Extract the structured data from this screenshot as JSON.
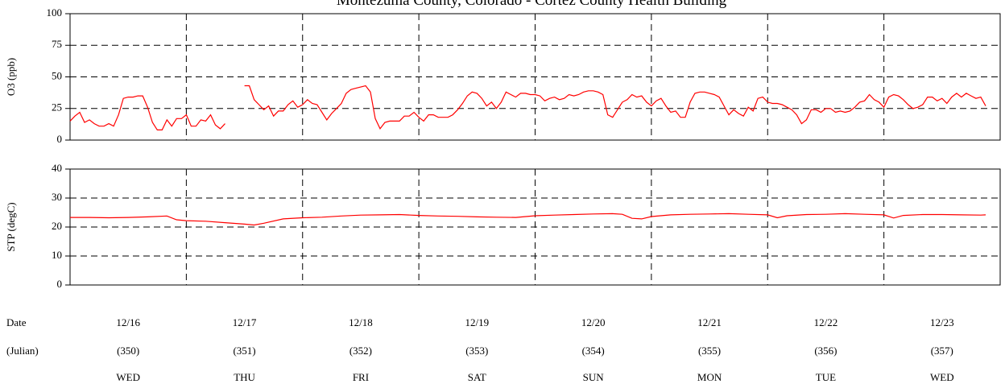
{
  "chart_data": {
    "type": "line",
    "title": "Montezuma County, Colorado - Cortez County Health Building",
    "row_labels": {
      "date": "Date",
      "julian": "(Julian)"
    },
    "days": [
      {
        "date": "12/16",
        "julian": "(350)",
        "dow": "WED"
      },
      {
        "date": "12/17",
        "julian": "(351)",
        "dow": "THU"
      },
      {
        "date": "12/18",
        "julian": "(352)",
        "dow": "FRI"
      },
      {
        "date": "12/19",
        "julian": "(353)",
        "dow": "SAT"
      },
      {
        "date": "12/20",
        "julian": "(354)",
        "dow": "SUN"
      },
      {
        "date": "12/21",
        "julian": "(355)",
        "dow": "MON"
      },
      {
        "date": "12/22",
        "julian": "(356)",
        "dow": "TUE"
      },
      {
        "date": "12/23",
        "julian": "(357)",
        "dow": "WED"
      }
    ],
    "panels": [
      {
        "ylabel": "O3 (ppb)",
        "ylim": [
          0,
          100
        ],
        "yticks": [
          "0",
          "25",
          "50",
          "75",
          "100"
        ],
        "grid": true,
        "color": "#ff0000",
        "series": [
          [
            [
              0.0,
              15
            ],
            [
              0.25,
              19
            ],
            [
              0.5,
              22
            ],
            [
              0.75,
              14
            ],
            [
              1.0,
              16
            ],
            [
              1.25,
              13
            ],
            [
              1.5,
              11
            ],
            [
              1.75,
              11
            ],
            [
              2.0,
              13
            ],
            [
              2.25,
              11
            ],
            [
              2.5,
              20
            ],
            [
              2.75,
              33
            ],
            [
              3.0,
              34
            ],
            [
              3.25,
              34
            ],
            [
              3.5,
              35
            ],
            [
              3.75,
              35
            ],
            [
              4.0,
              26
            ],
            [
              4.25,
              14
            ],
            [
              4.5,
              8
            ],
            [
              4.75,
              8
            ],
            [
              5.0,
              16
            ],
            [
              5.25,
              11
            ],
            [
              5.5,
              17
            ],
            [
              5.75,
              17
            ],
            [
              6.0,
              20
            ],
            [
              6.25,
              11
            ],
            [
              6.5,
              11
            ],
            [
              6.75,
              16
            ],
            [
              7.0,
              15
            ],
            [
              7.25,
              20
            ],
            [
              7.5,
              12
            ],
            [
              7.75,
              9
            ],
            [
              8.0,
              13
            ]
          ],
          [
            [
              9.0,
              43
            ],
            [
              9.25,
              43
            ],
            [
              9.5,
              32
            ],
            [
              9.75,
              28
            ],
            [
              10.0,
              24
            ],
            [
              10.25,
              27
            ],
            [
              10.5,
              19
            ],
            [
              10.75,
              23
            ],
            [
              11.0,
              23
            ],
            [
              11.25,
              28
            ],
            [
              11.5,
              31
            ],
            [
              11.75,
              26
            ],
            [
              12.0,
              28
            ],
            [
              12.25,
              32
            ],
            [
              12.5,
              29
            ],
            [
              12.75,
              28
            ],
            [
              13.0,
              22
            ],
            [
              13.25,
              16
            ],
            [
              13.5,
              21
            ],
            [
              13.75,
              25
            ],
            [
              14.0,
              29
            ],
            [
              14.25,
              37
            ],
            [
              14.5,
              40
            ],
            [
              14.75,
              41
            ],
            [
              15.0,
              42
            ],
            [
              15.25,
              43
            ],
            [
              15.5,
              38
            ],
            [
              15.75,
              17
            ],
            [
              16.0,
              9
            ],
            [
              16.25,
              14
            ],
            [
              16.5,
              15
            ],
            [
              16.75,
              15
            ],
            [
              17.0,
              15
            ],
            [
              17.25,
              19
            ],
            [
              17.5,
              19
            ],
            [
              17.75,
              22
            ],
            [
              18.0,
              18
            ],
            [
              18.25,
              15
            ],
            [
              18.5,
              20
            ],
            [
              18.75,
              20
            ],
            [
              19.0,
              18
            ],
            [
              19.25,
              18
            ],
            [
              19.5,
              18
            ],
            [
              19.75,
              20
            ],
            [
              20.0,
              24
            ],
            [
              20.25,
              29
            ],
            [
              20.5,
              35
            ],
            [
              20.75,
              38
            ],
            [
              21.0,
              37
            ],
            [
              21.25,
              33
            ],
            [
              21.5,
              27
            ],
            [
              21.75,
              30
            ],
            [
              22.0,
              25
            ],
            [
              22.25,
              30
            ],
            [
              22.5,
              38
            ],
            [
              22.75,
              36
            ],
            [
              23.0,
              34
            ],
            [
              23.25,
              37
            ],
            [
              23.5,
              37
            ],
            [
              23.75,
              36
            ],
            [
              24.0,
              36
            ],
            [
              24.25,
              35
            ],
            [
              24.5,
              31
            ],
            [
              24.75,
              33
            ],
            [
              25.0,
              34
            ],
            [
              25.25,
              32
            ],
            [
              25.5,
              33
            ],
            [
              25.75,
              36
            ],
            [
              26.0,
              35
            ],
            [
              26.25,
              36
            ],
            [
              26.5,
              38
            ],
            [
              26.75,
              39
            ],
            [
              27.0,
              39
            ],
            [
              27.25,
              38
            ],
            [
              27.5,
              36
            ],
            [
              27.75,
              20
            ],
            [
              28.0,
              18
            ],
            [
              28.25,
              24
            ],
            [
              28.5,
              30
            ],
            [
              28.75,
              32
            ],
            [
              29.0,
              36
            ],
            [
              29.25,
              34
            ],
            [
              29.5,
              35
            ],
            [
              29.75,
              30
            ],
            [
              30.0,
              27
            ],
            [
              30.25,
              31
            ],
            [
              30.5,
              33
            ],
            [
              30.75,
              27
            ],
            [
              31.0,
              22
            ],
            [
              31.25,
              23
            ],
            [
              31.5,
              18
            ],
            [
              31.75,
              18
            ],
            [
              32.0,
              30
            ],
            [
              32.25,
              37
            ],
            [
              32.5,
              38
            ],
            [
              32.75,
              38
            ],
            [
              33.0,
              37
            ],
            [
              33.25,
              36
            ],
            [
              33.5,
              34
            ],
            [
              33.75,
              27
            ],
            [
              34.0,
              20
            ],
            [
              34.25,
              24
            ],
            [
              34.5,
              21
            ],
            [
              34.75,
              19
            ],
            [
              35.0,
              26
            ],
            [
              35.25,
              23
            ],
            [
              35.5,
              33
            ],
            [
              35.75,
              34
            ],
            [
              36.0,
              30
            ],
            [
              36.25,
              29
            ],
            [
              36.5,
              29
            ],
            [
              36.75,
              28
            ],
            [
              37.0,
              26
            ],
            [
              37.25,
              24
            ],
            [
              37.5,
              20
            ],
            [
              37.75,
              13
            ],
            [
              38.0,
              16
            ],
            [
              38.25,
              24
            ],
            [
              38.5,
              24
            ],
            [
              38.75,
              22
            ],
            [
              39.0,
              25
            ],
            [
              39.25,
              25
            ],
            [
              39.5,
              22
            ],
            [
              39.75,
              23
            ],
            [
              40.0,
              22
            ],
            [
              40.25,
              23
            ],
            [
              40.5,
              26
            ],
            [
              40.75,
              30
            ],
            [
              41.0,
              31
            ],
            [
              41.25,
              36
            ],
            [
              41.5,
              32
            ],
            [
              41.75,
              30
            ],
            [
              42.0,
              26
            ],
            [
              42.25,
              34
            ],
            [
              42.5,
              36
            ],
            [
              42.75,
              35
            ],
            [
              43.0,
              32
            ],
            [
              43.25,
              28
            ],
            [
              43.5,
              25
            ],
            [
              43.75,
              26
            ],
            [
              44.0,
              28
            ],
            [
              44.25,
              34
            ],
            [
              44.5,
              34
            ],
            [
              44.75,
              31
            ],
            [
              45.0,
              33
            ],
            [
              45.25,
              29
            ],
            [
              45.5,
              34
            ],
            [
              45.75,
              37
            ],
            [
              46.0,
              34
            ],
            [
              46.25,
              37
            ],
            [
              46.5,
              35
            ],
            [
              46.75,
              33
            ],
            [
              47.0,
              34
            ],
            [
              47.25,
              27
            ]
          ]
        ]
      },
      {
        "ylabel": "STP (degC)",
        "ylim": [
          0,
          40
        ],
        "yticks": [
          "0",
          "10",
          "20",
          "30",
          "40"
        ],
        "grid": true,
        "color": "#ff0000",
        "series": [
          [
            [
              0,
              23.3
            ],
            [
              1,
              23.3
            ],
            [
              2,
              23.2
            ],
            [
              3,
              23.3
            ],
            [
              4,
              23.5
            ],
            [
              5,
              23.8
            ],
            [
              5.5,
              22.5
            ],
            [
              6,
              22.2
            ],
            [
              7,
              22.0
            ],
            [
              8,
              21.5
            ],
            [
              9,
              21.0
            ],
            [
              9.5,
              20.7
            ],
            [
              10,
              21.3
            ],
            [
              11,
              22.8
            ],
            [
              12,
              23.2
            ],
            [
              13,
              23.4
            ],
            [
              14,
              23.8
            ],
            [
              15,
              24.1
            ],
            [
              16,
              24.2
            ],
            [
              17,
              24.3
            ],
            [
              18,
              24.0
            ],
            [
              19,
              23.8
            ],
            [
              20,
              23.7
            ],
            [
              21,
              23.5
            ],
            [
              22,
              23.4
            ],
            [
              23,
              23.3
            ],
            [
              24,
              23.9
            ],
            [
              25,
              24.1
            ],
            [
              26,
              24.3
            ],
            [
              27,
              24.5
            ],
            [
              28,
              24.6
            ],
            [
              28.5,
              24.4
            ],
            [
              29,
              23.0
            ],
            [
              29.5,
              22.8
            ],
            [
              30,
              23.6
            ],
            [
              31,
              24.2
            ],
            [
              32,
              24.4
            ],
            [
              33,
              24.5
            ],
            [
              34,
              24.6
            ],
            [
              35,
              24.4
            ],
            [
              36,
              24.2
            ],
            [
              36.5,
              23.2
            ],
            [
              37,
              23.9
            ],
            [
              38,
              24.3
            ],
            [
              39,
              24.4
            ],
            [
              40,
              24.6
            ],
            [
              41,
              24.4
            ],
            [
              42,
              24.2
            ],
            [
              42.5,
              23.1
            ],
            [
              43,
              24.0
            ],
            [
              44,
              24.3
            ],
            [
              45,
              24.3
            ],
            [
              46,
              24.2
            ],
            [
              47,
              24.1
            ],
            [
              47.25,
              24.2
            ]
          ]
        ]
      }
    ]
  }
}
